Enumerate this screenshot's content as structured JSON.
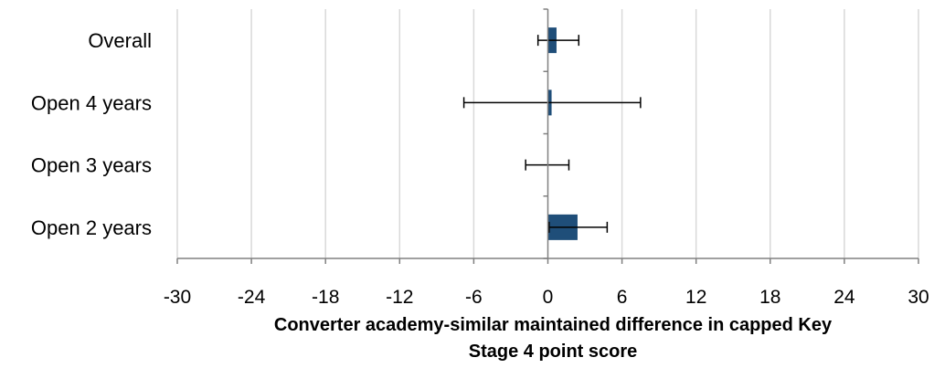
{
  "chart_data": {
    "type": "bar",
    "orientation": "horizontal",
    "categories": [
      "Overall",
      "Open 4 years",
      "Open 3 years",
      "Open 2 years"
    ],
    "series": [
      {
        "values": [
          0.7,
          0.3,
          0.0,
          2.4
        ],
        "error_low": [
          -0.8,
          -6.8,
          -1.8,
          0.1
        ],
        "error_high": [
          2.5,
          7.5,
          1.7,
          4.8
        ],
        "color": "#1f4e79"
      }
    ],
    "xlim": [
      -30,
      30
    ],
    "xticks": [
      -30,
      -24,
      -18,
      -12,
      -6,
      0,
      6,
      12,
      18,
      24,
      30
    ],
    "xtick_labels": [
      "-30",
      "-24",
      "-18",
      "-12",
      "-6",
      "0",
      "6",
      "12",
      "18",
      "24",
      "30"
    ],
    "xlabel_lines": [
      "Converter academy-similar maintained difference in capped Key",
      "Stage 4 point score"
    ],
    "grid": "vertical",
    "legend": "none"
  }
}
